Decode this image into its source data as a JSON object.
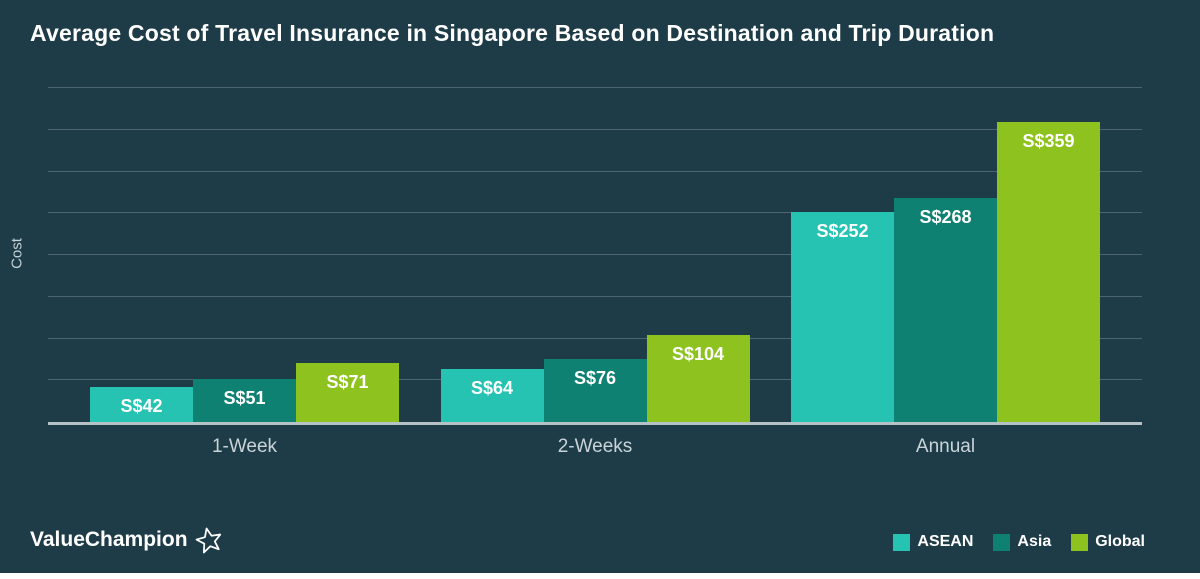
{
  "title": "Average Cost of Travel Insurance in Singapore Based on Destination and Trip Duration",
  "ylabel": "Cost",
  "brand": {
    "name": "ValueChampion"
  },
  "colors": {
    "background": "#1e3c47",
    "gridline": "#4d656e",
    "baseline": "#b6c2c6",
    "asean": "#27c3b2",
    "asia": "#0e8173",
    "global": "#8dc21f"
  },
  "chart_data": {
    "type": "bar",
    "categories": [
      "1-Week",
      "2-Weeks",
      "Annual"
    ],
    "series": [
      {
        "name": "ASEAN",
        "color": "#27c3b2",
        "values": [
          42,
          64,
          252
        ]
      },
      {
        "name": "Asia",
        "color": "#0e8173",
        "values": [
          51,
          76,
          268
        ]
      },
      {
        "name": "Global",
        "color": "#8dc21f",
        "values": [
          71,
          104,
          359
        ]
      }
    ],
    "value_prefix": "S$",
    "data_labels": [
      [
        "S$42",
        "S$64",
        "S$252"
      ],
      [
        "S$51",
        "S$76",
        "S$268"
      ],
      [
        "S$71",
        "S$104",
        "S$359"
      ]
    ],
    "title": "Average Cost of Travel Insurance in Singapore Based on Destination and Trip Duration",
    "xlabel": "",
    "ylabel": "Cost",
    "ylim": [
      0,
      400
    ],
    "gridline_step": 50,
    "grid": true,
    "legend_position": "bottom-right"
  }
}
